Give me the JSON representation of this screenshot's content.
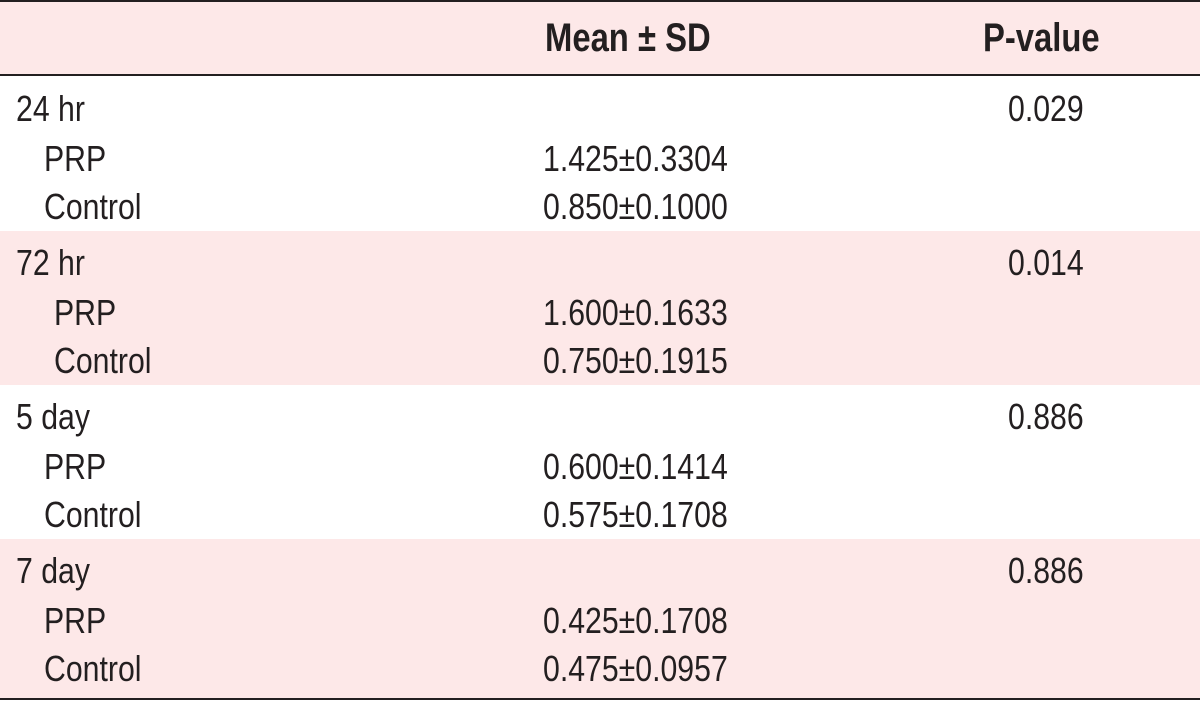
{
  "header": {
    "col_group": "",
    "col_mean": "Mean ± SD",
    "col_p": "P-value"
  },
  "groups": [
    {
      "time": "24 hr",
      "p_value": "0.029",
      "rows": [
        {
          "label": "PRP",
          "mean_sd": "1.425±0.3304"
        },
        {
          "label": "Control",
          "mean_sd": "0.850±0.1000"
        }
      ]
    },
    {
      "time": "72 hr",
      "p_value": "0.014",
      "rows": [
        {
          "label": "PRP",
          "mean_sd": "1.600±0.1633"
        },
        {
          "label": "Control",
          "mean_sd": "0.750±0.1915"
        }
      ]
    },
    {
      "time": "5 day",
      "p_value": "0.886",
      "rows": [
        {
          "label": "PRP",
          "mean_sd": "0.600±0.1414"
        },
        {
          "label": "Control",
          "mean_sd": "0.575±0.1708"
        }
      ]
    },
    {
      "time": "7 day",
      "p_value": "0.886",
      "rows": [
        {
          "label": "PRP",
          "mean_sd": "0.425±0.1708"
        },
        {
          "label": "Control",
          "mean_sd": "0.475±0.0957"
        }
      ]
    }
  ],
  "colors": {
    "shade": "#fde8e8",
    "text": "#231f20",
    "rule": "#231f20"
  }
}
